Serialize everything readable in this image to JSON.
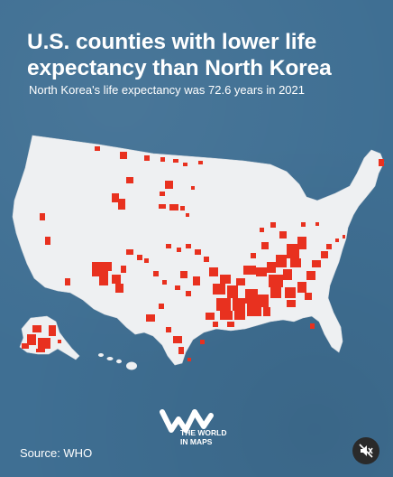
{
  "title": "U.S. counties with lower life expectancy than North Korea",
  "subtitle": "North Korea's life expectancy was 72.6 years in 2021",
  "source": "Source: WHO",
  "logo": {
    "line1": "THE WORLD",
    "line2": "IN MAPS"
  },
  "colors": {
    "background": "#3f6f93",
    "land": "#eef0f2",
    "highlight": "#e8311f"
  },
  "controls": {
    "mute_icon": "muted-speaker-icon"
  }
}
